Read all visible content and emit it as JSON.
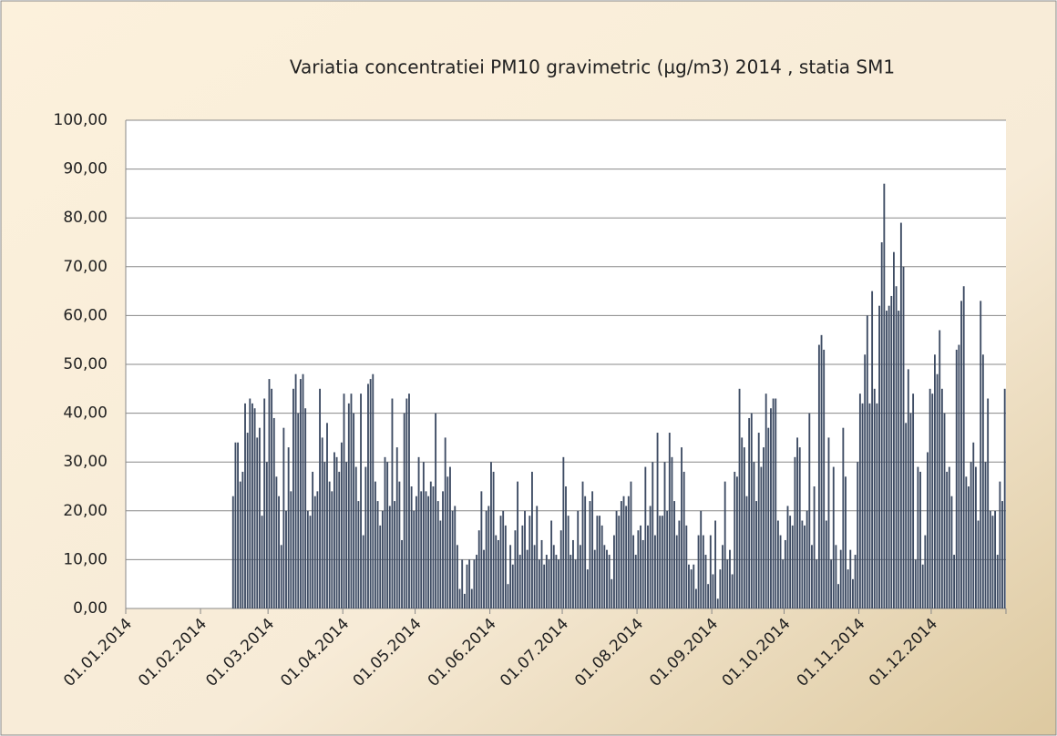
{
  "chart_data": {
    "type": "bar",
    "title": "Variatia concentratiei PM10 gravimetric (µg/m3)  2014 , statia SM1",
    "color": "#3d4b63",
    "grid": true,
    "xlim": [
      "01.01.2014",
      "01.01.2015"
    ],
    "xticks": [
      "01.01.2014",
      "01.02.2014",
      "01.03.2014",
      "01.04.2014",
      "01.05.2014",
      "01.06.2014",
      "01.07.2014",
      "01.08.2014",
      "01.09.2014",
      "01.10.2014",
      "01.11.2014",
      "01.12.2014"
    ],
    "ylim": [
      0,
      100
    ],
    "yticks": [
      {
        "value": 0,
        "label": "0,00"
      },
      {
        "value": 10,
        "label": "10,00"
      },
      {
        "value": 20,
        "label": "20,00"
      },
      {
        "value": 30,
        "label": "30,00"
      },
      {
        "value": 40,
        "label": "40,00"
      },
      {
        "value": 50,
        "label": "50,00"
      },
      {
        "value": 60,
        "label": "60,00"
      },
      {
        "value": 70,
        "label": "70,00"
      },
      {
        "value": 80,
        "label": "80,00"
      },
      {
        "value": 90,
        "label": "90,00"
      },
      {
        "value": 100,
        "label": "100,00"
      }
    ],
    "x": [
      "14.02.2014",
      "15.02.2014",
      "16.02.2014",
      "17.02.2014",
      "18.02.2014",
      "19.02.2014",
      "20.02.2014",
      "21.02.2014",
      "22.02.2014",
      "23.02.2014",
      "24.02.2014",
      "25.02.2014",
      "26.02.2014",
      "27.02.2014",
      "28.02.2014",
      "01.03.2014",
      "02.03.2014",
      "03.03.2014",
      "04.03.2014",
      "05.03.2014",
      "06.03.2014",
      "07.03.2014",
      "08.03.2014",
      "09.03.2014",
      "10.03.2014",
      "11.03.2014",
      "12.03.2014",
      "13.03.2014",
      "14.03.2014",
      "15.03.2014",
      "16.03.2014",
      "17.03.2014",
      "18.03.2014",
      "19.03.2014",
      "20.03.2014",
      "21.03.2014",
      "22.03.2014",
      "23.03.2014",
      "24.03.2014",
      "25.03.2014",
      "26.03.2014",
      "27.03.2014",
      "28.03.2014",
      "29.03.2014",
      "30.03.2014",
      "31.03.2014",
      "01.04.2014",
      "02.04.2014",
      "03.04.2014",
      "04.04.2014",
      "05.04.2014",
      "06.04.2014",
      "07.04.2014",
      "08.04.2014",
      "09.04.2014",
      "10.04.2014",
      "11.04.2014",
      "12.04.2014",
      "13.04.2014",
      "14.04.2014",
      "15.04.2014",
      "16.04.2014",
      "17.04.2014",
      "18.04.2014",
      "19.04.2014",
      "20.04.2014",
      "21.04.2014",
      "22.04.2014",
      "23.04.2014",
      "24.04.2014",
      "25.04.2014",
      "26.04.2014",
      "27.04.2014",
      "28.04.2014",
      "29.04.2014",
      "30.04.2014",
      "01.05.2014",
      "02.05.2014",
      "03.05.2014",
      "04.05.2014",
      "05.05.2014",
      "06.05.2014",
      "07.05.2014",
      "08.05.2014",
      "09.05.2014",
      "10.05.2014",
      "11.05.2014",
      "12.05.2014",
      "13.05.2014",
      "14.05.2014",
      "15.05.2014",
      "16.05.2014",
      "17.05.2014",
      "18.05.2014",
      "19.05.2014",
      "20.05.2014",
      "21.05.2014",
      "22.05.2014",
      "23.05.2014",
      "24.05.2014",
      "25.05.2014",
      "26.05.2014",
      "27.05.2014",
      "28.05.2014",
      "29.05.2014",
      "30.05.2014",
      "31.05.2014",
      "01.06.2014",
      "02.06.2014",
      "03.06.2014",
      "04.06.2014",
      "05.06.2014",
      "06.06.2014",
      "07.06.2014",
      "08.06.2014",
      "09.06.2014",
      "10.06.2014",
      "11.06.2014",
      "12.06.2014",
      "13.06.2014",
      "14.06.2014",
      "15.06.2014",
      "16.06.2014",
      "17.06.2014",
      "18.06.2014",
      "19.06.2014",
      "20.06.2014",
      "21.06.2014",
      "22.06.2014",
      "23.06.2014",
      "24.06.2014",
      "25.06.2014",
      "26.06.2014",
      "27.06.2014",
      "28.06.2014",
      "29.06.2014",
      "30.06.2014",
      "01.07.2014",
      "02.07.2014",
      "03.07.2014",
      "04.07.2014",
      "05.07.2014",
      "06.07.2014",
      "07.07.2014",
      "08.07.2014",
      "09.07.2014",
      "10.07.2014",
      "11.07.2014",
      "12.07.2014",
      "13.07.2014",
      "14.07.2014",
      "15.07.2014",
      "16.07.2014",
      "17.07.2014",
      "18.07.2014",
      "19.07.2014",
      "20.07.2014",
      "21.07.2014",
      "22.07.2014",
      "23.07.2014",
      "24.07.2014",
      "25.07.2014",
      "26.07.2014",
      "27.07.2014",
      "28.07.2014",
      "29.07.2014",
      "30.07.2014",
      "31.07.2014",
      "01.08.2014",
      "02.08.2014",
      "03.08.2014",
      "04.08.2014",
      "05.08.2014",
      "06.08.2014",
      "07.08.2014",
      "08.08.2014",
      "09.08.2014",
      "10.08.2014",
      "11.08.2014",
      "12.08.2014",
      "13.08.2014",
      "14.08.2014",
      "15.08.2014",
      "16.08.2014",
      "17.08.2014",
      "18.08.2014",
      "19.08.2014",
      "20.08.2014",
      "21.08.2014",
      "22.08.2014",
      "23.08.2014",
      "24.08.2014",
      "25.08.2014",
      "26.08.2014",
      "27.08.2014",
      "28.08.2014",
      "29.08.2014",
      "30.08.2014",
      "31.08.2014",
      "01.09.2014",
      "02.09.2014",
      "03.09.2014",
      "04.09.2014",
      "05.09.2014",
      "06.09.2014",
      "07.09.2014",
      "08.09.2014",
      "09.09.2014",
      "10.09.2014",
      "11.09.2014",
      "12.09.2014",
      "13.09.2014",
      "14.09.2014",
      "15.09.2014",
      "16.09.2014",
      "17.09.2014",
      "18.09.2014",
      "19.09.2014",
      "20.09.2014",
      "21.09.2014",
      "22.09.2014",
      "23.09.2014",
      "24.09.2014",
      "25.09.2014",
      "26.09.2014",
      "27.09.2014",
      "28.09.2014",
      "29.09.2014",
      "30.09.2014",
      "01.10.2014",
      "02.10.2014",
      "03.10.2014",
      "04.10.2014",
      "05.10.2014",
      "06.10.2014",
      "07.10.2014",
      "08.10.2014",
      "09.10.2014",
      "10.10.2014",
      "11.10.2014",
      "12.10.2014",
      "13.10.2014",
      "14.10.2014",
      "15.10.2014",
      "16.10.2014",
      "17.10.2014",
      "18.10.2014",
      "19.10.2014",
      "20.10.2014",
      "21.10.2014",
      "22.10.2014",
      "23.10.2014",
      "24.10.2014",
      "25.10.2014",
      "26.10.2014",
      "27.10.2014",
      "28.10.2014",
      "29.10.2014",
      "30.10.2014",
      "31.10.2014",
      "01.11.2014",
      "02.11.2014",
      "03.11.2014",
      "04.11.2014",
      "05.11.2014",
      "06.11.2014",
      "07.11.2014",
      "08.11.2014",
      "09.11.2014",
      "10.11.2014",
      "11.11.2014",
      "12.11.2014",
      "13.11.2014",
      "14.11.2014",
      "15.11.2014",
      "16.11.2014",
      "17.11.2014",
      "18.11.2014",
      "19.11.2014",
      "20.11.2014",
      "21.11.2014",
      "22.11.2014",
      "23.11.2014",
      "24.11.2014",
      "25.11.2014",
      "26.11.2014",
      "27.11.2014",
      "28.11.2014",
      "29.11.2014",
      "30.11.2014",
      "01.12.2014",
      "02.12.2014",
      "03.12.2014",
      "04.12.2014",
      "05.12.2014",
      "06.12.2014",
      "07.12.2014",
      "08.12.2014",
      "09.12.2014",
      "10.12.2014",
      "11.12.2014",
      "12.12.2014",
      "13.12.2014",
      "14.12.2014",
      "15.12.2014",
      "16.12.2014",
      "17.12.2014",
      "18.12.2014",
      "19.12.2014",
      "20.12.2014",
      "21.12.2014",
      "22.12.2014",
      "23.12.2014",
      "24.12.2014",
      "25.12.2014",
      "26.12.2014",
      "27.12.2014",
      "28.12.2014",
      "29.12.2014",
      "30.12.2014",
      "31.12.2014"
    ],
    "values": [
      23,
      34,
      34,
      26,
      28,
      42,
      36,
      43,
      42,
      41,
      35,
      37,
      19,
      43,
      30,
      47,
      45,
      39,
      27,
      23,
      13,
      37,
      20,
      33,
      24,
      45,
      48,
      40,
      47,
      48,
      41,
      20,
      19,
      28,
      23,
      24,
      45,
      35,
      30,
      38,
      26,
      24,
      32,
      31,
      28,
      34,
      44,
      30,
      42,
      44,
      40,
      29,
      22,
      44,
      15,
      29,
      46,
      47,
      48,
      26,
      22,
      17,
      20,
      31,
      30,
      21,
      43,
      22,
      33,
      26,
      14,
      40,
      43,
      44,
      25,
      20,
      23,
      31,
      24,
      30,
      24,
      23,
      26,
      25,
      40,
      22,
      18,
      24,
      35,
      27,
      29,
      20,
      21,
      13,
      4,
      10,
      3,
      9,
      10,
      4,
      10,
      11,
      16,
      24,
      12,
      20,
      21,
      30,
      28,
      15,
      14,
      19,
      20,
      17,
      5,
      13,
      9,
      16,
      26,
      11,
      17,
      20,
      12,
      19,
      28,
      13,
      21,
      10,
      14,
      9,
      11,
      10,
      18,
      13,
      11,
      10,
      16,
      31,
      25,
      19,
      11,
      14,
      10,
      20,
      13,
      26,
      23,
      8,
      22,
      24,
      12,
      19,
      19,
      17,
      13,
      12,
      11,
      6,
      15,
      20,
      19,
      22,
      23,
      21,
      23,
      26,
      15,
      11,
      16,
      17,
      14,
      29,
      17,
      21,
      30,
      15,
      36,
      19,
      19,
      30,
      20,
      36,
      31,
      22,
      15,
      18,
      33,
      28,
      17,
      9,
      8,
      9,
      4,
      15,
      20,
      15,
      11,
      5,
      15,
      7,
      18,
      2,
      8,
      13,
      26,
      10,
      12,
      7,
      28,
      27,
      45,
      35,
      33,
      23,
      39,
      40,
      30,
      22,
      36,
      29,
      33,
      44,
      37,
      41,
      43,
      43,
      18,
      15,
      10,
      14,
      21,
      19,
      17,
      31,
      35,
      33,
      18,
      17,
      20,
      40,
      13,
      25,
      10,
      54,
      56,
      53,
      18,
      35,
      10,
      29,
      13,
      5,
      12,
      37,
      27,
      8,
      12,
      6,
      11,
      30,
      44,
      42,
      52,
      60,
      42,
      65,
      45,
      42,
      62,
      75,
      87,
      61,
      62,
      64,
      73,
      66,
      61,
      79,
      70,
      38,
      49,
      40,
      44,
      10,
      29,
      28,
      9,
      15,
      32,
      45,
      44,
      52,
      48,
      57,
      45,
      40,
      28,
      29,
      23,
      11,
      53,
      54,
      63,
      66,
      27,
      25,
      30,
      34,
      29,
      18,
      63,
      52,
      30,
      43,
      20,
      19,
      20,
      11,
      26,
      22,
      45
    ]
  }
}
